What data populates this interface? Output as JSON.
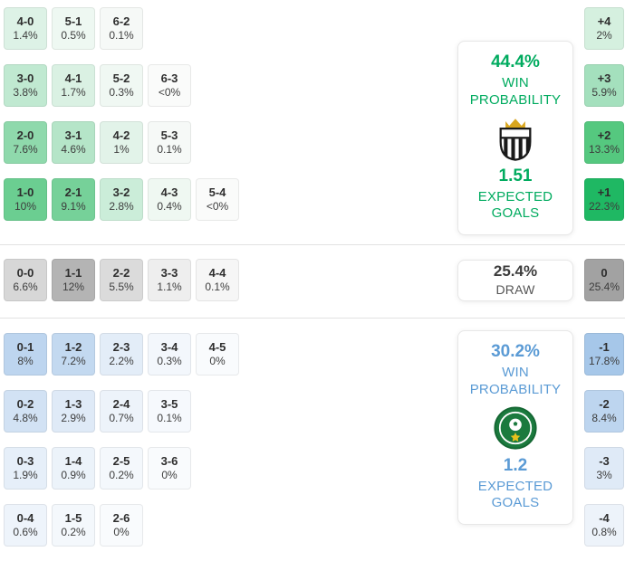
{
  "chart_data": {
    "type": "heatmap",
    "title": "Correct score probability matrix with win probabilities and expected goals",
    "sections": [
      {
        "id": "home",
        "outcome": "home-win",
        "rows": [
          {
            "cells": [
              {
                "score": "4-0",
                "pct": "1.4%",
                "bg": "#ddf2e6"
              },
              {
                "score": "5-1",
                "pct": "0.5%",
                "bg": "#eef8f2"
              },
              {
                "score": "6-2",
                "pct": "0.1%",
                "bg": "#f6f9f7"
              }
            ]
          },
          {
            "cells": [
              {
                "score": "3-0",
                "pct": "3.8%",
                "bg": "#c0e9d1"
              },
              {
                "score": "4-1",
                "pct": "1.7%",
                "bg": "#daf1e3"
              },
              {
                "score": "5-2",
                "pct": "0.3%",
                "bg": "#f0f8f3"
              },
              {
                "score": "6-3",
                "pct": "<0%",
                "bg": "#fafbfa"
              }
            ]
          },
          {
            "cells": [
              {
                "score": "2-0",
                "pct": "7.6%",
                "bg": "#8fd9ac"
              },
              {
                "score": "3-1",
                "pct": "4.6%",
                "bg": "#b5e5c8"
              },
              {
                "score": "4-2",
                "pct": "1%",
                "bg": "#e2f3e9"
              },
              {
                "score": "5-3",
                "pct": "0.1%",
                "bg": "#f6f9f7"
              }
            ]
          },
          {
            "cells": [
              {
                "score": "1-0",
                "pct": "10%",
                "bg": "#6bce91"
              },
              {
                "score": "2-1",
                "pct": "9.1%",
                "bg": "#76d199"
              },
              {
                "score": "3-2",
                "pct": "2.8%",
                "bg": "#cbedd9"
              },
              {
                "score": "4-3",
                "pct": "0.4%",
                "bg": "#eff8f2"
              },
              {
                "score": "5-4",
                "pct": "<0%",
                "bg": "#fafbfa"
              }
            ]
          }
        ]
      },
      {
        "id": "draw",
        "outcome": "draw",
        "rows": [
          {
            "cells": [
              {
                "score": "0-0",
                "pct": "6.6%",
                "bg": "#d7d7d7"
              },
              {
                "score": "1-1",
                "pct": "12%",
                "bg": "#b4b4b4"
              },
              {
                "score": "2-2",
                "pct": "5.5%",
                "bg": "#dbdbdb"
              },
              {
                "score": "3-3",
                "pct": "1.1%",
                "bg": "#eeeeee"
              },
              {
                "score": "4-4",
                "pct": "0.1%",
                "bg": "#f6f6f6"
              }
            ]
          }
        ]
      },
      {
        "id": "away",
        "outcome": "away-win",
        "rows": [
          {
            "cells": [
              {
                "score": "0-1",
                "pct": "8%",
                "bg": "#bdd5ef"
              },
              {
                "score": "1-2",
                "pct": "7.2%",
                "bg": "#c3d9f0"
              },
              {
                "score": "2-3",
                "pct": "2.2%",
                "bg": "#e3edf8"
              },
              {
                "score": "3-4",
                "pct": "0.3%",
                "bg": "#f3f7fc"
              },
              {
                "score": "4-5",
                "pct": "0%",
                "bg": "#f9fbfd"
              }
            ]
          },
          {
            "cells": [
              {
                "score": "0-2",
                "pct": "4.8%",
                "bg": "#d2e2f4"
              },
              {
                "score": "1-3",
                "pct": "2.9%",
                "bg": "#dfeaf7"
              },
              {
                "score": "2-4",
                "pct": "0.7%",
                "bg": "#edf3fa"
              },
              {
                "score": "3-5",
                "pct": "0.1%",
                "bg": "#f6f9fd"
              }
            ]
          },
          {
            "cells": [
              {
                "score": "0-3",
                "pct": "1.9%",
                "bg": "#e6eff9"
              },
              {
                "score": "1-4",
                "pct": "0.9%",
                "bg": "#ecf3fa"
              },
              {
                "score": "2-5",
                "pct": "0.2%",
                "bg": "#f4f8fc"
              },
              {
                "score": "3-6",
                "pct": "0%",
                "bg": "#f9fbfd"
              }
            ]
          },
          {
            "cells": [
              {
                "score": "0-4",
                "pct": "0.6%",
                "bg": "#eef4fb"
              },
              {
                "score": "1-5",
                "pct": "0.2%",
                "bg": "#f4f8fc"
              },
              {
                "score": "2-6",
                "pct": "0%",
                "bg": "#f9fbfd"
              }
            ]
          }
        ]
      }
    ],
    "margins": [
      {
        "label": "+4",
        "pct": "2%",
        "bg": "#d5f0df"
      },
      {
        "label": "+3",
        "pct": "5.9%",
        "bg": "#a4e0bd"
      },
      {
        "label": "+2",
        "pct": "13.3%",
        "bg": "#55c87f"
      },
      {
        "label": "+1",
        "pct": "22.3%",
        "bg": "#1fb863"
      },
      {
        "label": "0",
        "pct": "25.4%",
        "bg": "#a2a2a2"
      },
      {
        "label": "-1",
        "pct": "17.8%",
        "bg": "#a6c7e9"
      },
      {
        "label": "-2",
        "pct": "8.4%",
        "bg": "#bdd5ef"
      },
      {
        "label": "-3",
        "pct": "3%",
        "bg": "#dfeaf7"
      },
      {
        "label": "-4",
        "pct": "0.8%",
        "bg": "#edf3fa"
      }
    ],
    "summary": {
      "home": {
        "value": "44.4%",
        "label": "WIN PROBABILITY",
        "xg_value": "1.51",
        "xg_label": "EXPECTED GOALS",
        "accent": "#00ab5f"
      },
      "draw": {
        "value": "25.4%",
        "label": "DRAW",
        "accent": "#3d3d3d"
      },
      "away": {
        "value": "30.2%",
        "label": "WIN PROBABILITY",
        "xg_value": "1.2",
        "xg_label": "EXPECTED GOALS",
        "accent": "#5b9bd5"
      }
    }
  },
  "icons": {
    "home_badge": "santos-crest-icon",
    "away_badge": "juventude-crest-icon"
  }
}
